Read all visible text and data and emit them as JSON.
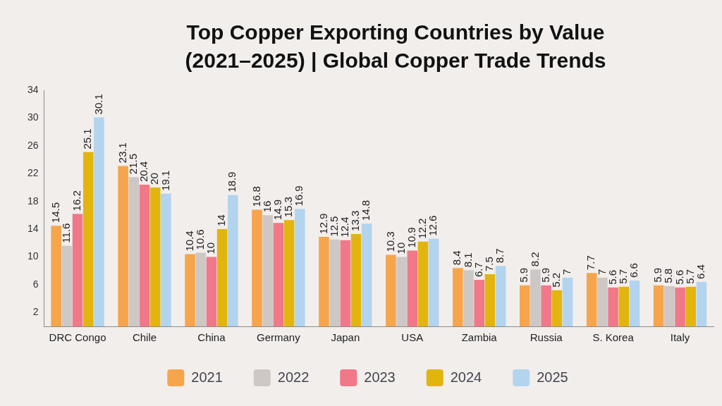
{
  "chart_data": {
    "type": "bar",
    "title": "Top Copper Exporting Countries by Value (2021–2025) | Global Copper Trade Trends",
    "categories": [
      "DRC Congo",
      "Chile",
      "China",
      "Germany",
      "Japan",
      "USA",
      "Zambia",
      "Russia",
      "S. Korea",
      "Italy"
    ],
    "series": [
      {
        "name": "2021",
        "color": "#f6a54c",
        "values": [
          14.5,
          23.1,
          10.4,
          16.8,
          12.9,
          10.3,
          8.4,
          5.9,
          7.7,
          5.9
        ]
      },
      {
        "name": "2022",
        "color": "#cdc8c5",
        "values": [
          11.6,
          21.5,
          10.6,
          16,
          12.5,
          10,
          8.1,
          8.2,
          7,
          5.8
        ]
      },
      {
        "name": "2023",
        "color": "#f07888",
        "values": [
          16.2,
          20.4,
          10,
          14.9,
          12.4,
          10.9,
          6.7,
          5.9,
          5.6,
          5.6
        ]
      },
      {
        "name": "2024",
        "color": "#e2b50e",
        "values": [
          25.1,
          20,
          14,
          15.3,
          13.3,
          12.2,
          7.5,
          5.2,
          5.7,
          5.7
        ]
      },
      {
        "name": "2025",
        "color": "#b3d4ee",
        "values": [
          30.1,
          19.1,
          18.9,
          16.9,
          14.8,
          12.6,
          8.7,
          7,
          6.6,
          6.4
        ]
      }
    ],
    "ylim": [
      0,
      34
    ],
    "yticks": [
      2,
      6,
      10,
      14,
      18,
      22,
      26,
      30,
      34
    ],
    "data_labels": true,
    "legend": "bottom"
  }
}
